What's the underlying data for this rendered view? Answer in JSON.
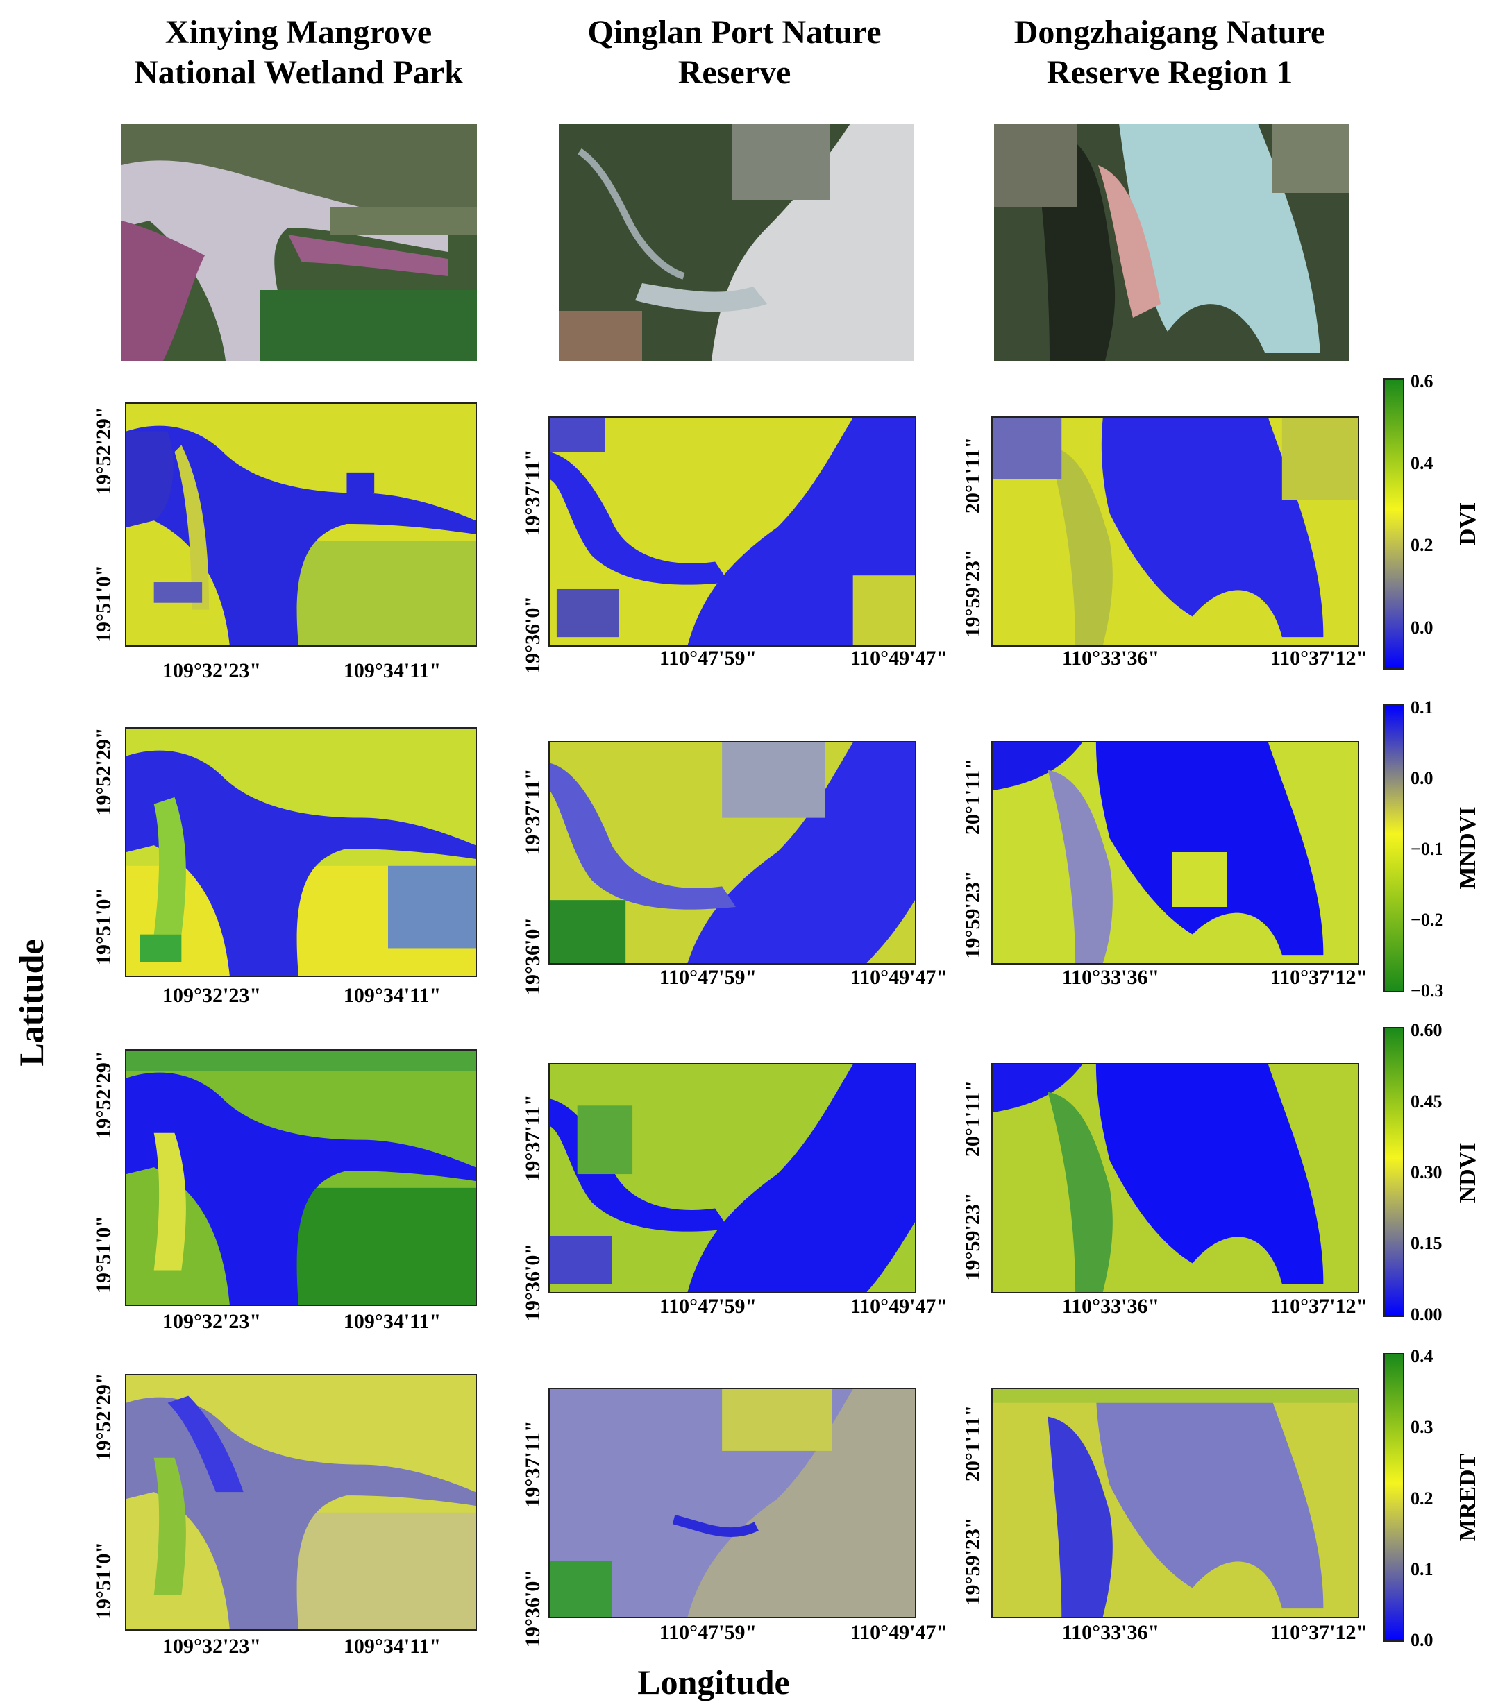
{
  "columns": [
    {
      "title_line1": "Xinying Mangrove",
      "title_line2": "National Wetland Park",
      "x_ticks": [
        "109°32'23\"",
        "109°34'11\""
      ],
      "y_ticks": [
        "19°52'29\"",
        "19°51'0\""
      ]
    },
    {
      "title_line1": "Qinglan Port Nature",
      "title_line2": "Reserve",
      "x_ticks": [
        "110°47'59\"",
        "110°49'47\""
      ],
      "y_ticks": [
        "19°37'11\"",
        "19°36'0\""
      ]
    },
    {
      "title_line1": "Dongzhaigang Nature",
      "title_line2": "Reserve Region 1",
      "x_ticks": [
        "110°33'36\"",
        "110°37'12\""
      ],
      "y_ticks": [
        "20°1'11\"",
        "19°59'23\""
      ]
    }
  ],
  "rows": [
    {
      "index": "DVI",
      "colorbar": {
        "top_color": "#1a8a1a",
        "mid_color": "#f5f51e",
        "bottom_color": "#0000ff",
        "ticks": [
          "0.6",
          "0.4",
          "0.2",
          "0.0"
        ]
      }
    },
    {
      "index": "MNDVI",
      "colorbar": {
        "top_color": "#0000ff",
        "mid_color": "#f5f51e",
        "bottom_color": "#1a8a1a",
        "ticks": [
          "0.1",
          "0.0",
          "−0.1",
          "−0.2",
          "−0.3"
        ]
      }
    },
    {
      "index": "NDVI",
      "colorbar": {
        "top_color": "#1a8a1a",
        "mid_color": "#f5f51e",
        "bottom_color": "#0000ff",
        "ticks": [
          "0.60",
          "0.45",
          "0.30",
          "0.15",
          "0.00"
        ]
      }
    },
    {
      "index": "MREDT",
      "colorbar": {
        "top_color": "#1a8a1a",
        "mid_color": "#f5f51e",
        "bottom_color": "#0000ff",
        "ticks": [
          "0.4",
          "0.3",
          "0.2",
          "0.1",
          "0.0"
        ]
      }
    }
  ],
  "axis": {
    "x_label": "Longitude",
    "y_label": "Latitude"
  },
  "colors": {
    "water": "#1414e6",
    "vegetation": "#d8e030",
    "dense": "#2f9a2a",
    "mud": "#8a8ac0"
  }
}
